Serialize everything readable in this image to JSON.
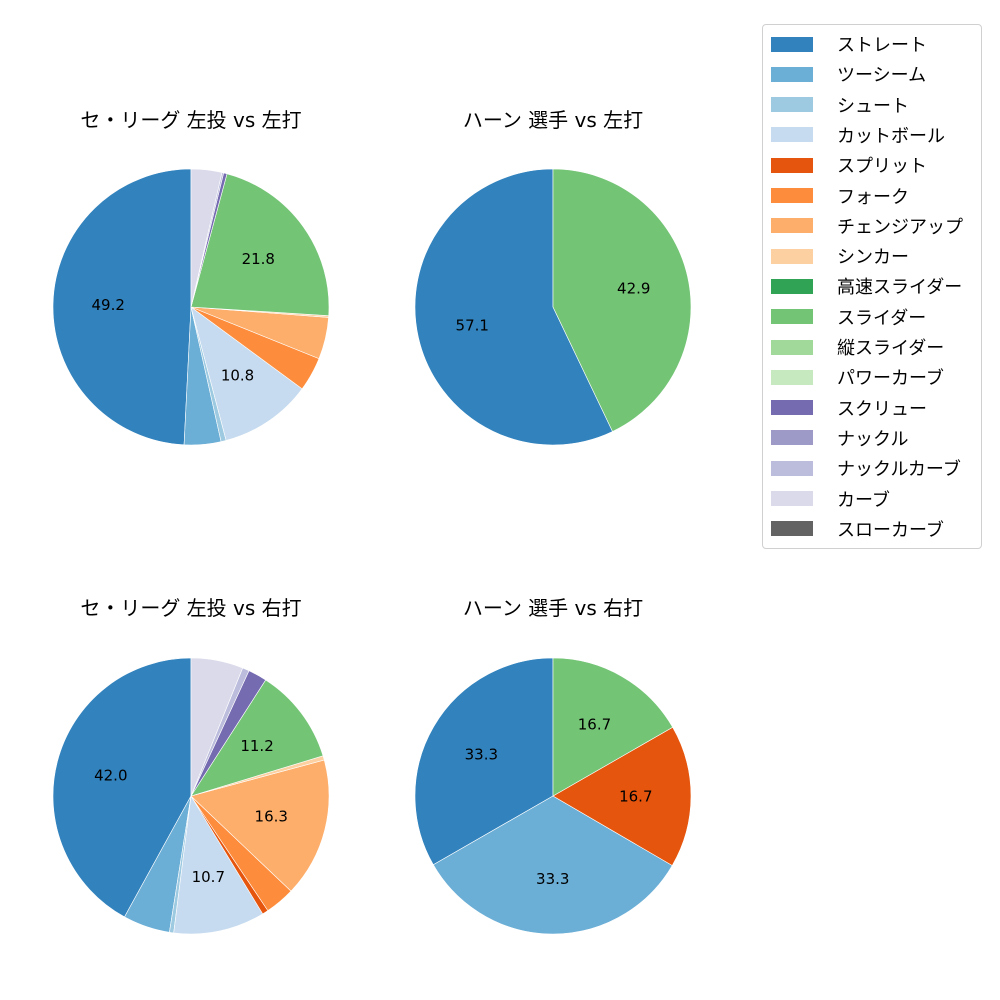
{
  "legend": {
    "items": [
      {
        "label": "ストレート",
        "color": "#3182bd"
      },
      {
        "label": "ツーシーム",
        "color": "#6baed6"
      },
      {
        "label": "シュート",
        "color": "#9ecae1"
      },
      {
        "label": "カットボール",
        "color": "#c6dbef"
      },
      {
        "label": "スプリット",
        "color": "#e6550d"
      },
      {
        "label": "フォーク",
        "color": "#fd8d3c"
      },
      {
        "label": "チェンジアップ",
        "color": "#fdae6b"
      },
      {
        "label": "シンカー",
        "color": "#fdd0a2"
      },
      {
        "label": "高速スライダー",
        "color": "#31a354"
      },
      {
        "label": "スライダー",
        "color": "#74c476"
      },
      {
        "label": "縦スライダー",
        "color": "#a1d99b"
      },
      {
        "label": "パワーカーブ",
        "color": "#c7e9c0"
      },
      {
        "label": "スクリュー",
        "color": "#756bb1"
      },
      {
        "label": "ナックル",
        "color": "#9e9ac8"
      },
      {
        "label": "ナックルカーブ",
        "color": "#bcbddc"
      },
      {
        "label": "カーブ",
        "color": "#dadaeb"
      },
      {
        "label": "スローカーブ",
        "color": "#636363"
      }
    ]
  },
  "chart_data": [
    {
      "type": "pie",
      "title": "セ・リーグ 左投 vs 左打",
      "center": [
        191,
        307
      ],
      "radius": 138,
      "start_angle": 90,
      "direction": "counterclockwise",
      "slices": [
        {
          "name": "ストレート",
          "value": 49.2,
          "label": "49.2"
        },
        {
          "name": "ツーシーム",
          "value": 4.3,
          "label": ""
        },
        {
          "name": "シュート",
          "value": 0.6,
          "label": ""
        },
        {
          "name": "カットボール",
          "value": 10.8,
          "label": "10.8"
        },
        {
          "name": "フォーク",
          "value": 4.0,
          "label": ""
        },
        {
          "name": "チェンジアップ",
          "value": 4.9,
          "label": ""
        },
        {
          "name": "シンカー",
          "value": 0.2,
          "label": ""
        },
        {
          "name": "スライダー",
          "value": 21.8,
          "label": "21.8"
        },
        {
          "name": "スクリュー",
          "value": 0.4,
          "label": ""
        },
        {
          "name": "ナックルカーブ",
          "value": 0.2,
          "label": ""
        },
        {
          "name": "カーブ",
          "value": 3.6,
          "label": ""
        }
      ]
    },
    {
      "type": "pie",
      "title": "ハーン 選手 vs 左打",
      "center": [
        553,
        307
      ],
      "radius": 138,
      "start_angle": 90,
      "direction": "counterclockwise",
      "slices": [
        {
          "name": "ストレート",
          "value": 57.1,
          "label": "57.1"
        },
        {
          "name": "スライダー",
          "value": 42.9,
          "label": "42.9"
        }
      ]
    },
    {
      "type": "pie",
      "title": "セ・リーグ 左投 vs 右打",
      "center": [
        191,
        796
      ],
      "radius": 138,
      "start_angle": 90,
      "direction": "counterclockwise",
      "slices": [
        {
          "name": "ストレート",
          "value": 42.0,
          "label": "42.0"
        },
        {
          "name": "ツーシーム",
          "value": 5.5,
          "label": ""
        },
        {
          "name": "シュート",
          "value": 0.5,
          "label": ""
        },
        {
          "name": "カットボール",
          "value": 10.7,
          "label": "10.7"
        },
        {
          "name": "スプリット",
          "value": 0.7,
          "label": ""
        },
        {
          "name": "フォーク",
          "value": 3.5,
          "label": ""
        },
        {
          "name": "チェンジアップ",
          "value": 16.3,
          "label": "16.3"
        },
        {
          "name": "シンカー",
          "value": 0.5,
          "label": ""
        },
        {
          "name": "スライダー",
          "value": 11.2,
          "label": "11.2"
        },
        {
          "name": "スクリュー",
          "value": 2.2,
          "label": ""
        },
        {
          "name": "ナックルカーブ",
          "value": 0.8,
          "label": ""
        },
        {
          "name": "カーブ",
          "value": 6.1,
          "label": ""
        }
      ]
    },
    {
      "type": "pie",
      "title": "ハーン 選手 vs 右打",
      "center": [
        553,
        796
      ],
      "radius": 138,
      "start_angle": 90,
      "direction": "counterclockwise",
      "slices": [
        {
          "name": "ストレート",
          "value": 33.3,
          "label": "33.3"
        },
        {
          "name": "ツーシーム",
          "value": 33.3,
          "label": "33.3"
        },
        {
          "name": "スプリット",
          "value": 16.7,
          "label": "16.7"
        },
        {
          "name": "スライダー",
          "value": 16.7,
          "label": "16.7"
        }
      ]
    }
  ]
}
